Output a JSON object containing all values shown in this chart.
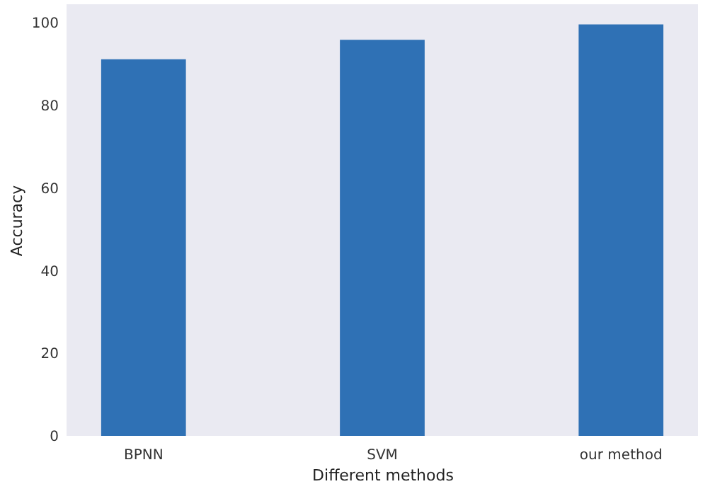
{
  "chart_data": {
    "type": "bar",
    "xlabel": "Different methods",
    "ylabel": "Accuracy",
    "categories": [
      "BPNN",
      "SVM",
      "our method"
    ],
    "values": [
      91.2,
      95.9,
      99.6
    ],
    "color": "#2f71b5",
    "ylim": [
      0,
      104.5
    ],
    "yticks": [
      0,
      20,
      40,
      60,
      80,
      100
    ],
    "grid": false
  }
}
